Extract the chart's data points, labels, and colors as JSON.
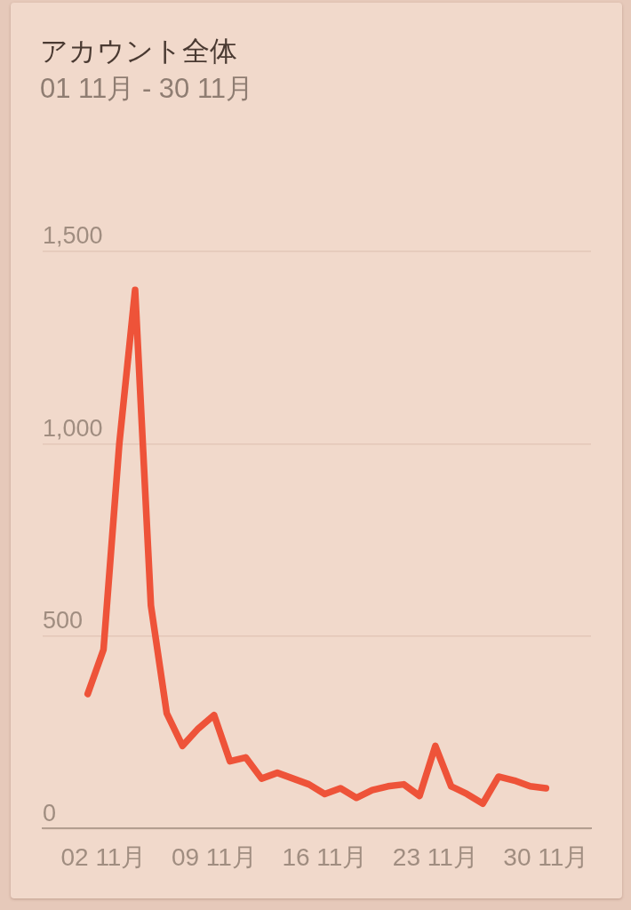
{
  "chart_data": {
    "type": "line",
    "title": "アカウント全体",
    "subtitle": "01 11月 - 30 11月",
    "categories": [
      null,
      "02 11月",
      null,
      null,
      null,
      null,
      null,
      null,
      "09 11月",
      null,
      null,
      null,
      null,
      null,
      null,
      "16 11月",
      null,
      null,
      null,
      null,
      null,
      null,
      "23 11月",
      null,
      null,
      null,
      null,
      null,
      null,
      "30 11月"
    ],
    "series": [
      {
        "color": "#ee5339",
        "values": [
          350,
          465,
          1000,
          1400,
          580,
          300,
          215,
          260,
          295,
          175,
          185,
          130,
          145,
          130,
          115,
          90,
          105,
          80,
          100,
          110,
          115,
          85,
          215,
          110,
          90,
          65,
          135,
          125,
          110,
          105
        ]
      }
    ],
    "ylim": [
      0,
      1500
    ],
    "yticks": [
      0,
      500,
      {
        "value": 1000,
        "label": "1,000"
      },
      {
        "value": 1500,
        "label": "1,500"
      }
    ],
    "grid": "y",
    "line_style": "solid"
  }
}
